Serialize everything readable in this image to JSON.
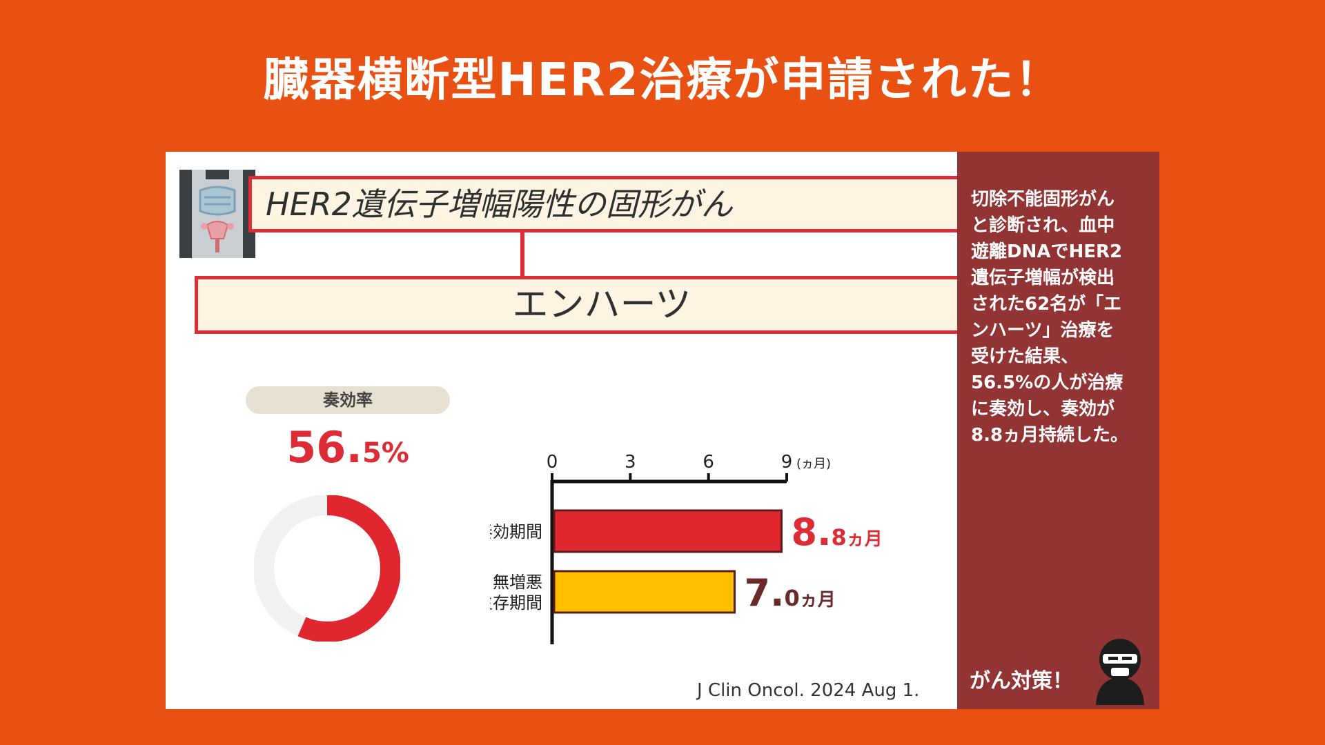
{
  "headline": "臓器横断型HER2治療が申請された！",
  "diagram": {
    "box1_label": "HER2遺伝子増幅陽性の固形がん",
    "box2_label": "エンハーツ"
  },
  "response_rate": {
    "label": "奏効率",
    "value_main": "56.",
    "value_decimal": "5",
    "unit": "%",
    "value": 56.5
  },
  "chart_data": {
    "type": "bar",
    "orientation": "horizontal",
    "unit_label": "(ヵ月)",
    "xlim": [
      0,
      9
    ],
    "ticks": [
      0,
      3,
      6,
      9
    ],
    "categories": [
      {
        "lines": [
          "奏効期間"
        ]
      },
      {
        "lines": [
          "無増悪",
          "生存期間"
        ]
      }
    ],
    "values": [
      8.8,
      7.0
    ],
    "value_labels": [
      {
        "main": "8.",
        "decimal": "8",
        "unit": "ヵ月"
      },
      {
        "main": "7.",
        "decimal": "0",
        "unit": "ヵ月"
      }
    ],
    "bar_colors": [
      "#e0262f",
      "#ffc000"
    ],
    "label_colors": [
      "#dc2c36",
      "#6a2a2a"
    ]
  },
  "citation": "J Clin Oncol. 2024 Aug 1.",
  "sidebar": {
    "lines": [
      "切除不能固形がん",
      "と診断され、血中",
      "遊離DNAでHER2",
      "遺伝子増幅が検出",
      "された62名が「エ",
      "ンハーツ」治療を",
      "受けた結果、",
      "56.5%の人が治療",
      "に奏効し、奏効が",
      "8.8ヵ月持続した。"
    ],
    "footer": "がん対策！"
  },
  "colors": {
    "background": "#e85112",
    "accent_red": "#dc2c36",
    "sidebar": "#923434"
  }
}
